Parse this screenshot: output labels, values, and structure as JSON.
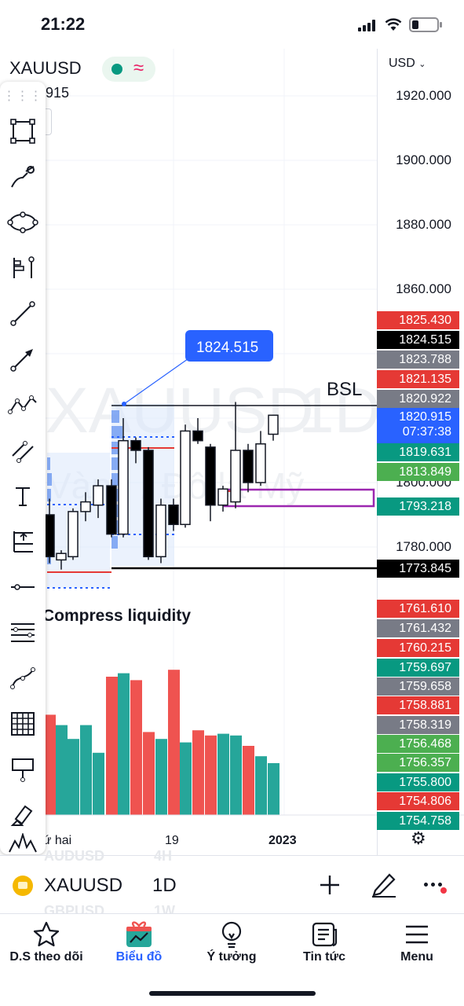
{
  "status": {
    "time": "21:22"
  },
  "header": {
    "symbol": "XAUUSD",
    "price_partial": "915",
    "currency": "USD"
  },
  "watermark": {
    "symbol": "XAUUSD",
    "timeframe": "1D",
    "subtitle": "Vàng / Đô la Mỹ"
  },
  "axis_ticks": [
    "1920.000",
    "1900.000",
    "1880.000",
    "1860.000",
    "1800.000",
    "1780.000"
  ],
  "price_tags": [
    {
      "label": "1825.430",
      "color": "#e53935"
    },
    {
      "label": "1824.515",
      "color": "#000000"
    },
    {
      "label": "1823.788",
      "color": "#787b86"
    },
    {
      "label": "1821.135",
      "color": "#e53935"
    },
    {
      "label": "1820.922",
      "color": "#787b86"
    },
    {
      "label": "1820.915",
      "color": "#2962ff"
    },
    {
      "label": "1819.631",
      "color": "#089981"
    },
    {
      "label": "1813.849",
      "color": "#4caf50"
    },
    {
      "label": "1793.218",
      "color": "#089981"
    },
    {
      "label": "1773.845",
      "color": "#000000"
    },
    {
      "label": "1761.610",
      "color": "#e53935"
    },
    {
      "label": "1761.432",
      "color": "#787b86"
    },
    {
      "label": "1760.215",
      "color": "#e53935"
    },
    {
      "label": "1759.697",
      "color": "#089981"
    },
    {
      "label": "1759.658",
      "color": "#787b86"
    },
    {
      "label": "1758.881",
      "color": "#e53935"
    },
    {
      "label": "1758.319",
      "color": "#787b86"
    },
    {
      "label": "1756.468",
      "color": "#4caf50"
    },
    {
      "label": "1756.357",
      "color": "#4caf50"
    },
    {
      "label": "1755.800",
      "color": "#089981"
    },
    {
      "label": "1754.806",
      "color": "#e53935"
    },
    {
      "label": "1754.758",
      "color": "#089981"
    }
  ],
  "countdown": "07:37:38",
  "annotations": {
    "callout": "1824.515",
    "bsl": "BSL",
    "indicator": "Compress liquidity"
  },
  "time_axis": [
    "Thứ hai",
    "19",
    "2023"
  ],
  "symbol_bar": {
    "symbol": "XAUUSD",
    "timeframe": "1D",
    "ghost_above": "AUDUSD",
    "ghost_above_tf": "4H",
    "ghost_below": "GBPUSD",
    "ghost_below_tf": "1W"
  },
  "nav": [
    {
      "label": "D.S theo dõi",
      "icon": "star-icon"
    },
    {
      "label": "Biểu đồ",
      "icon": "chart-gift-icon",
      "active": true
    },
    {
      "label": "Ý tưởng",
      "icon": "lightbulb-icon"
    },
    {
      "label": "Tin tức",
      "icon": "news-icon"
    },
    {
      "label": "Menu",
      "icon": "menu-icon"
    }
  ],
  "chart_data": {
    "type": "candlestick",
    "candles": [
      {
        "o": 1790,
        "h": 1795,
        "l": 1775,
        "c": 1777
      },
      {
        "o": 1776,
        "h": 1779,
        "l": 1773,
        "c": 1778
      },
      {
        "o": 1777,
        "h": 1792,
        "l": 1776,
        "c": 1791
      },
      {
        "o": 1791,
        "h": 1797,
        "l": 1788,
        "c": 1794
      },
      {
        "o": 1793,
        "h": 1801,
        "l": 1789,
        "c": 1799
      },
      {
        "o": 1799,
        "h": 1801,
        "l": 1783,
        "c": 1784
      },
      {
        "o": 1784,
        "h": 1820,
        "l": 1783,
        "c": 1813
      },
      {
        "o": 1813,
        "h": 1814,
        "l": 1806,
        "c": 1810
      },
      {
        "o": 1810,
        "h": 1811,
        "l": 1776,
        "c": 1777
      },
      {
        "o": 1777,
        "h": 1795,
        "l": 1775,
        "c": 1793
      },
      {
        "o": 1793,
        "h": 1795,
        "l": 1785,
        "c": 1787
      },
      {
        "o": 1787,
        "h": 1818,
        "l": 1786,
        "c": 1816
      },
      {
        "o": 1816,
        "h": 1820,
        "l": 1812,
        "c": 1813
      },
      {
        "o": 1811,
        "h": 1812,
        "l": 1788,
        "c": 1793
      },
      {
        "o": 1793,
        "h": 1799,
        "l": 1791,
        "c": 1798
      },
      {
        "o": 1794,
        "h": 1825,
        "l": 1792,
        "c": 1810
      },
      {
        "o": 1810,
        "h": 1812,
        "l": 1797,
        "c": 1800
      },
      {
        "o": 1800,
        "h": 1816,
        "l": 1799,
        "c": 1812
      },
      {
        "o": 1815,
        "h": 1821,
        "l": 1813,
        "c": 1820.9
      }
    ],
    "volume_colors": [
      "#ef5350",
      "#26a69a",
      "#26a69a",
      "#26a69a",
      "#26a69a",
      "#ef5350",
      "#26a69a",
      "#ef5350",
      "#ef5350",
      "#26a69a",
      "#ef5350",
      "#26a69a",
      "#ef5350",
      "#ef5350",
      "#26a69a",
      "#26a69a",
      "#ef5350",
      "#26a69a",
      "#26a69a"
    ],
    "volume_values": [
      58,
      52,
      44,
      52,
      36,
      80,
      82,
      78,
      48,
      44,
      84,
      42,
      49,
      46,
      47,
      46,
      40,
      34,
      30
    ],
    "ylim": [
      1754,
      1930
    ]
  }
}
